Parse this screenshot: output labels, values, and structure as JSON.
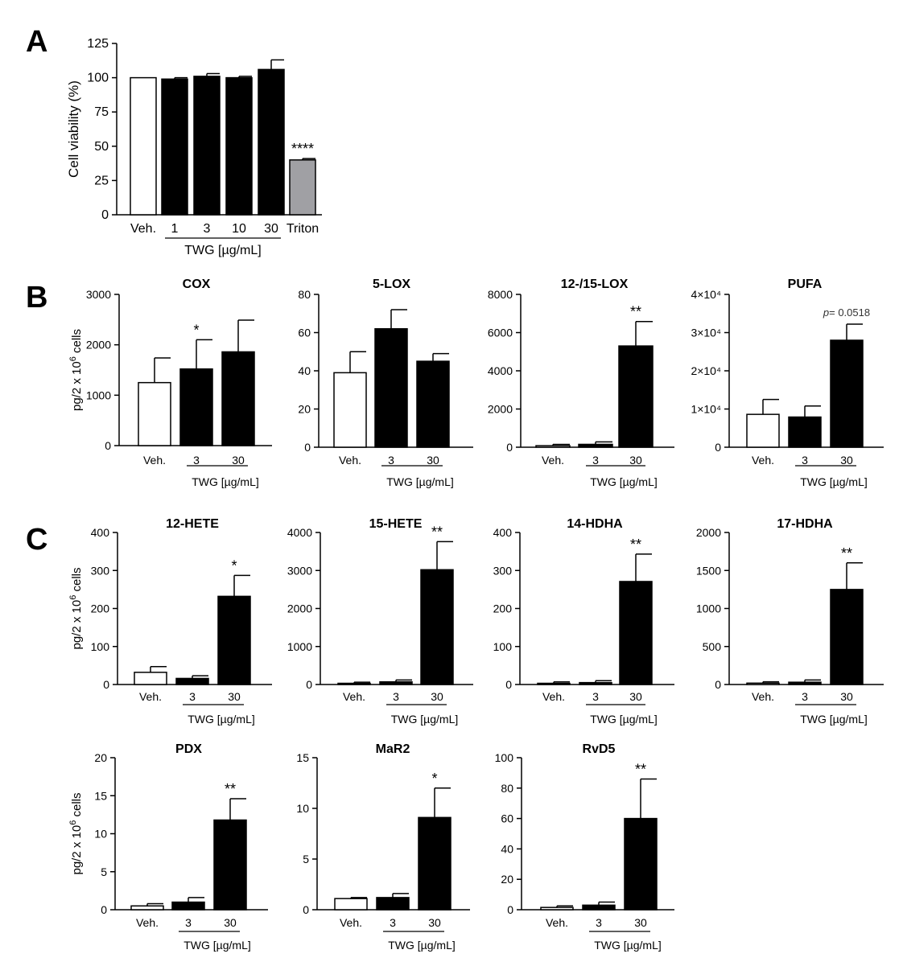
{
  "figure": {
    "panel_labels": [
      "A",
      "B",
      "C"
    ]
  },
  "chart_data": [
    {
      "id": "A",
      "type": "bar",
      "title": "",
      "ylabel": "Cell viability (%)",
      "categories": [
        "Veh.",
        "1",
        "3",
        "10",
        "30",
        "Triton"
      ],
      "values": [
        100,
        99,
        101,
        100,
        106,
        40
      ],
      "errors": [
        0,
        1,
        2,
        1,
        7,
        1
      ],
      "fills": [
        "#ffffff",
        "#000000",
        "#000000",
        "#000000",
        "#000000",
        "#a0a0a4"
      ],
      "ylim": [
        0,
        125
      ],
      "yticks": [
        "0",
        "25",
        "50",
        "75",
        "100",
        "125"
      ],
      "ytick_values": [
        0,
        25,
        50,
        75,
        100,
        125
      ],
      "annotations": [
        {
          "index": 5,
          "text": "****"
        }
      ],
      "group_label": "TWG [µg/mL]",
      "group_range": [
        1,
        4
      ]
    },
    {
      "id": "B1",
      "type": "bar",
      "title": "COX",
      "ylabel": "pg/2 x 10^6 cells",
      "categories": [
        "Veh.",
        "3",
        "30"
      ],
      "values": [
        1250,
        1520,
        1860
      ],
      "errors": [
        490,
        580,
        630
      ],
      "fills": [
        "#ffffff",
        "#000000",
        "#000000"
      ],
      "ylim": [
        0,
        3000
      ],
      "yticks": [
        "0",
        "1000",
        "2000",
        "3000"
      ],
      "ytick_values": [
        0,
        1000,
        2000,
        3000
      ],
      "annotations": [
        {
          "index": 1,
          "text": "*"
        }
      ],
      "group_label": "TWG [µg/mL]",
      "group_range": [
        1,
        2
      ]
    },
    {
      "id": "B2",
      "type": "bar",
      "title": "5-LOX",
      "categories": [
        "Veh.",
        "3",
        "30"
      ],
      "values": [
        39,
        62,
        45
      ],
      "errors": [
        11,
        10,
        4
      ],
      "fills": [
        "#ffffff",
        "#000000",
        "#000000"
      ],
      "ylim": [
        0,
        80
      ],
      "yticks": [
        "0",
        "20",
        "40",
        "60",
        "80"
      ],
      "ytick_values": [
        0,
        20,
        40,
        60,
        80
      ],
      "annotations": [],
      "group_label": "TWG [µg/mL]",
      "group_range": [
        1,
        2
      ]
    },
    {
      "id": "B3",
      "type": "bar",
      "title": "12-/15-LOX",
      "categories": [
        "Veh.",
        "3",
        "30"
      ],
      "values": [
        80,
        150,
        5300
      ],
      "errors": [
        70,
        130,
        1280
      ],
      "fills": [
        "#ffffff",
        "#000000",
        "#000000"
      ],
      "ylim": [
        0,
        8000
      ],
      "yticks": [
        "0",
        "2000",
        "4000",
        "6000",
        "8000"
      ],
      "ytick_values": [
        0,
        2000,
        4000,
        6000,
        8000
      ],
      "annotations": [
        {
          "index": 2,
          "text": "**"
        }
      ],
      "group_label": "TWG [µg/mL]",
      "group_range": [
        1,
        2
      ]
    },
    {
      "id": "B4",
      "type": "bar",
      "title": "PUFA",
      "categories": [
        "Veh.",
        "3",
        "30"
      ],
      "values": [
        8600,
        7900,
        28000
      ],
      "errors": [
        3900,
        2900,
        4200
      ],
      "fills": [
        "#ffffff",
        "#000000",
        "#000000"
      ],
      "ylim": [
        0,
        40000
      ],
      "yticks": [
        "0",
        "1×10⁴",
        "2×10⁴",
        "3×10⁴",
        "4×10⁴"
      ],
      "ytick_values": [
        0,
        10000,
        20000,
        30000,
        40000
      ],
      "annotations": [
        {
          "index": 2,
          "text": "p= 0.0518"
        }
      ],
      "group_label": "TWG [µg/mL]",
      "group_range": [
        1,
        2
      ]
    },
    {
      "id": "C1",
      "type": "bar",
      "title": "12-HETE",
      "ylabel": "pg/2 x 10^6 cells",
      "categories": [
        "Veh.",
        "3",
        "30"
      ],
      "values": [
        32,
        16,
        232
      ],
      "errors": [
        15,
        7,
        55
      ],
      "fills": [
        "#ffffff",
        "#000000",
        "#000000"
      ],
      "ylim": [
        0,
        400
      ],
      "yticks": [
        "0",
        "100",
        "200",
        "300",
        "400"
      ],
      "ytick_values": [
        0,
        100,
        200,
        300,
        400
      ],
      "annotations": [
        {
          "index": 2,
          "text": "*"
        }
      ],
      "group_label": "TWG [µg/mL]",
      "group_range": [
        1,
        2
      ]
    },
    {
      "id": "C2",
      "type": "bar",
      "title": "15-HETE",
      "categories": [
        "Veh.",
        "3",
        "30"
      ],
      "values": [
        30,
        70,
        3020
      ],
      "errors": [
        30,
        50,
        740
      ],
      "fills": [
        "#ffffff",
        "#000000",
        "#000000"
      ],
      "ylim": [
        0,
        4000
      ],
      "yticks": [
        "0",
        "1000",
        "2000",
        "3000",
        "4000"
      ],
      "ytick_values": [
        0,
        1000,
        2000,
        3000,
        4000
      ],
      "annotations": [
        {
          "index": 2,
          "text": "**"
        }
      ],
      "group_label": "TWG [µg/mL]",
      "group_range": [
        1,
        2
      ]
    },
    {
      "id": "C3",
      "type": "bar",
      "title": "14-HDHA",
      "categories": [
        "Veh.",
        "3",
        "30"
      ],
      "values": [
        3,
        5,
        271
      ],
      "errors": [
        4,
        5,
        72
      ],
      "fills": [
        "#ffffff",
        "#000000",
        "#000000"
      ],
      "ylim": [
        0,
        400
      ],
      "yticks": [
        "0",
        "100",
        "200",
        "300",
        "400"
      ],
      "ytick_values": [
        0,
        100,
        200,
        300,
        400
      ],
      "annotations": [
        {
          "index": 2,
          "text": "**"
        }
      ],
      "group_label": "TWG [µg/mL]",
      "group_range": [
        1,
        2
      ]
    },
    {
      "id": "C4",
      "type": "bar",
      "title": "17-HDHA",
      "categories": [
        "Veh.",
        "3",
        "30"
      ],
      "values": [
        18,
        30,
        1250
      ],
      "errors": [
        18,
        30,
        350
      ],
      "fills": [
        "#ffffff",
        "#000000",
        "#000000"
      ],
      "ylim": [
        0,
        2000
      ],
      "yticks": [
        "0",
        "500",
        "1000",
        "1500",
        "2000"
      ],
      "ytick_values": [
        0,
        500,
        1000,
        1500,
        2000
      ],
      "annotations": [
        {
          "index": 2,
          "text": "**"
        }
      ],
      "group_label": "TWG [µg/mL]",
      "group_range": [
        1,
        2
      ]
    },
    {
      "id": "C5",
      "type": "bar",
      "title": "PDX",
      "ylabel": "pg/2 x 10^6 cells",
      "categories": [
        "Veh.",
        "3",
        "30"
      ],
      "values": [
        0.5,
        1.0,
        11.8
      ],
      "errors": [
        0.3,
        0.6,
        2.8
      ],
      "fills": [
        "#ffffff",
        "#000000",
        "#000000"
      ],
      "ylim": [
        0,
        20
      ],
      "yticks": [
        "0",
        "5",
        "10",
        "15",
        "20"
      ],
      "ytick_values": [
        0,
        5,
        10,
        15,
        20
      ],
      "annotations": [
        {
          "index": 2,
          "text": "**"
        }
      ],
      "group_label": "TWG [µg/mL]",
      "group_range": [
        1,
        2
      ]
    },
    {
      "id": "C6",
      "type": "bar",
      "title": "MaR2",
      "categories": [
        "Veh.",
        "3",
        "30"
      ],
      "values": [
        1.1,
        1.2,
        9.1
      ],
      "errors": [
        0.1,
        0.4,
        2.9
      ],
      "fills": [
        "#ffffff",
        "#000000",
        "#000000"
      ],
      "ylim": [
        0,
        15
      ],
      "yticks": [
        "0",
        "5",
        "10",
        "15"
      ],
      "ytick_values": [
        0,
        5,
        10,
        15
      ],
      "annotations": [
        {
          "index": 2,
          "text": "*"
        }
      ],
      "group_label": "TWG [µg/mL]",
      "group_range": [
        1,
        2
      ]
    },
    {
      "id": "C7",
      "type": "bar",
      "title": "RvD5",
      "categories": [
        "Veh.",
        "3",
        "30"
      ],
      "values": [
        1.5,
        3,
        60
      ],
      "errors": [
        1,
        2,
        26
      ],
      "fills": [
        "#ffffff",
        "#000000",
        "#000000"
      ],
      "ylim": [
        0,
        100
      ],
      "yticks": [
        "0",
        "20",
        "40",
        "60",
        "80",
        "100"
      ],
      "ytick_values": [
        0,
        20,
        40,
        60,
        80,
        100
      ],
      "annotations": [
        {
          "index": 2,
          "text": "**"
        }
      ],
      "group_label": "TWG [µg/mL]",
      "group_range": [
        1,
        2
      ]
    }
  ]
}
